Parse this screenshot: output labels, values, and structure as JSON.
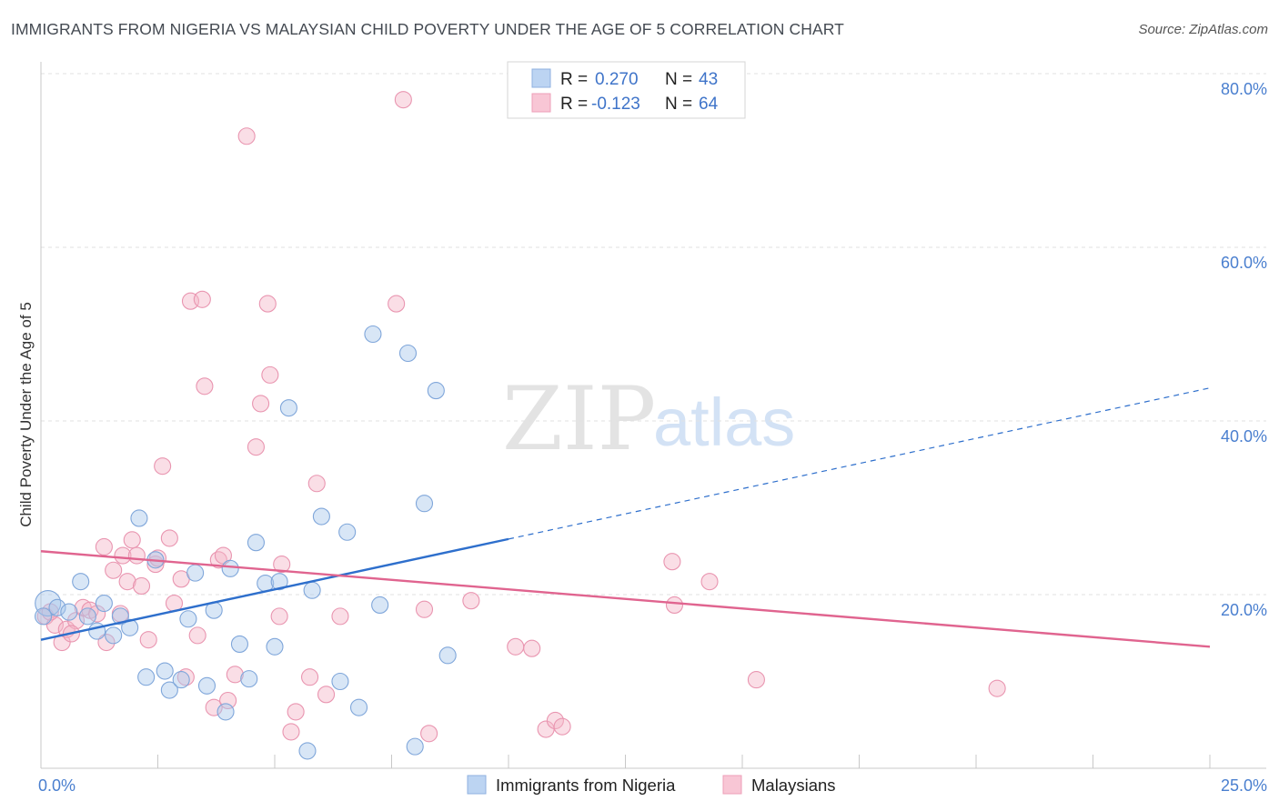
{
  "title": "IMMIGRANTS FROM NIGERIA VS MALAYSIAN CHILD POVERTY UNDER THE AGE OF 5 CORRELATION CHART",
  "source": "Source: ZipAtlas.com",
  "watermark": {
    "zip": "ZIP",
    "atlas": "atlas"
  },
  "legend": {
    "r_label": "R =",
    "n_label": "N =",
    "rows": [
      {
        "r": "0.270",
        "n": "43"
      },
      {
        "r": "-0.123",
        "n": "64"
      }
    ]
  },
  "bottom_legend": [
    "Immigrants from Nigeria",
    "Malaysians"
  ],
  "chart_data": {
    "type": "scatter",
    "title": "IMMIGRANTS FROM NIGERIA VS MALAYSIAN CHILD POVERTY UNDER THE AGE OF 5 CORRELATION CHART",
    "xlabel": "",
    "ylabel": "Child Poverty Under the Age of 5",
    "xlim": [
      0,
      25
    ],
    "ylim": [
      0,
      82
    ],
    "x_tick_labels": [
      "0.0%",
      "25.0%"
    ],
    "y_ticks": [
      20,
      40,
      60,
      80
    ],
    "y_tick_labels": [
      "20.0%",
      "40.0%",
      "60.0%",
      "80.0%"
    ],
    "colors": {
      "nigeria": "#a9c7ec",
      "nigeria_line": "#2e6fcc",
      "malaysians": "#f4b6c8",
      "malaysians_line": "#e0648f"
    },
    "series": [
      {
        "name": "Immigrants from Nigeria",
        "r": 0.27,
        "n": 43,
        "trend": {
          "x0": 0,
          "y0": 14.8,
          "x1": 25,
          "y1": 43.8,
          "solid_until_x": 10.0
        },
        "points": [
          [
            0.15,
            19.0
          ],
          [
            0.35,
            18.5
          ],
          [
            0.6,
            18.0
          ],
          [
            0.85,
            21.5
          ],
          [
            1.0,
            17.5
          ],
          [
            1.2,
            15.8
          ],
          [
            1.35,
            19.0
          ],
          [
            1.55,
            15.3
          ],
          [
            1.7,
            17.5
          ],
          [
            1.9,
            16.2
          ],
          [
            2.1,
            28.8
          ],
          [
            2.25,
            10.5
          ],
          [
            2.45,
            24.0
          ],
          [
            2.65,
            11.2
          ],
          [
            2.75,
            9.0
          ],
          [
            3.0,
            10.2
          ],
          [
            3.15,
            17.2
          ],
          [
            3.3,
            22.5
          ],
          [
            3.55,
            9.5
          ],
          [
            3.7,
            18.2
          ],
          [
            3.95,
            6.5
          ],
          [
            4.05,
            23.0
          ],
          [
            4.25,
            14.3
          ],
          [
            4.45,
            10.3
          ],
          [
            4.6,
            26.0
          ],
          [
            4.8,
            21.3
          ],
          [
            5.0,
            14.0
          ],
          [
            5.1,
            21.5
          ],
          [
            5.3,
            41.5
          ],
          [
            5.7,
            2.0
          ],
          [
            5.8,
            20.5
          ],
          [
            6.0,
            29.0
          ],
          [
            6.4,
            10.0
          ],
          [
            6.55,
            27.2
          ],
          [
            6.8,
            7.0
          ],
          [
            7.1,
            50.0
          ],
          [
            7.25,
            18.8
          ],
          [
            7.85,
            47.8
          ],
          [
            8.0,
            2.5
          ],
          [
            8.2,
            30.5
          ],
          [
            8.45,
            43.5
          ],
          [
            8.7,
            13.0
          ],
          [
            0.05,
            17.5
          ]
        ]
      },
      {
        "name": "Malaysians",
        "r": -0.123,
        "n": 64,
        "trend": {
          "x0": 0,
          "y0": 25.0,
          "x1": 25,
          "y1": 14.0
        },
        "points": [
          [
            0.1,
            17.5
          ],
          [
            0.3,
            16.5
          ],
          [
            0.45,
            14.5
          ],
          [
            0.55,
            16.0
          ],
          [
            0.75,
            17.0
          ],
          [
            0.9,
            18.5
          ],
          [
            1.05,
            18.2
          ],
          [
            1.2,
            17.8
          ],
          [
            1.35,
            25.5
          ],
          [
            1.4,
            14.5
          ],
          [
            1.55,
            22.8
          ],
          [
            1.7,
            17.8
          ],
          [
            1.75,
            24.5
          ],
          [
            1.85,
            21.5
          ],
          [
            1.95,
            26.3
          ],
          [
            2.05,
            24.5
          ],
          [
            2.15,
            21.0
          ],
          [
            2.3,
            14.8
          ],
          [
            2.45,
            23.5
          ],
          [
            2.5,
            24.2
          ],
          [
            2.6,
            34.8
          ],
          [
            2.75,
            26.5
          ],
          [
            2.85,
            19.0
          ],
          [
            3.0,
            21.8
          ],
          [
            3.1,
            10.5
          ],
          [
            3.2,
            53.8
          ],
          [
            3.35,
            15.3
          ],
          [
            3.45,
            54.0
          ],
          [
            3.5,
            44.0
          ],
          [
            3.7,
            7.0
          ],
          [
            3.8,
            24.0
          ],
          [
            3.9,
            24.5
          ],
          [
            4.0,
            7.8
          ],
          [
            4.15,
            10.8
          ],
          [
            4.4,
            72.8
          ],
          [
            4.6,
            37.0
          ],
          [
            4.7,
            42.0
          ],
          [
            4.85,
            53.5
          ],
          [
            4.9,
            45.3
          ],
          [
            5.1,
            17.5
          ],
          [
            5.15,
            23.5
          ],
          [
            5.35,
            4.2
          ],
          [
            5.45,
            6.5
          ],
          [
            5.75,
            10.5
          ],
          [
            5.9,
            32.8
          ],
          [
            6.1,
            8.5
          ],
          [
            6.4,
            17.5
          ],
          [
            7.6,
            53.5
          ],
          [
            7.75,
            77.0
          ],
          [
            8.2,
            18.3
          ],
          [
            8.3,
            4.0
          ],
          [
            9.2,
            19.3
          ],
          [
            10.15,
            14.0
          ],
          [
            10.5,
            13.8
          ],
          [
            10.8,
            4.5
          ],
          [
            11.0,
            5.5
          ],
          [
            11.15,
            4.8
          ],
          [
            13.5,
            23.8
          ],
          [
            13.55,
            18.8
          ],
          [
            14.3,
            21.5
          ],
          [
            15.3,
            10.2
          ],
          [
            20.45,
            9.2
          ],
          [
            0.2,
            18.0
          ],
          [
            0.65,
            15.5
          ]
        ]
      }
    ]
  }
}
